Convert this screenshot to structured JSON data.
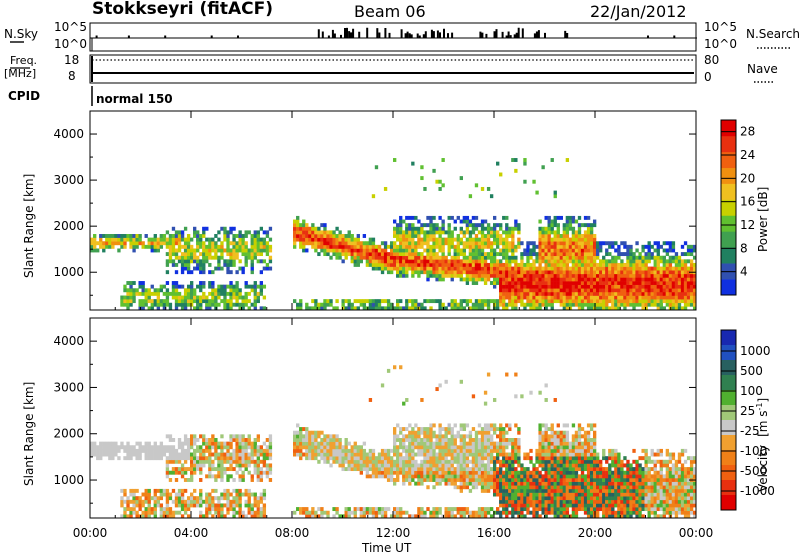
{
  "header": {
    "station": "Stokkseyri (fitACF)",
    "beam": "Beam 06",
    "date": "22/Jan/2012"
  },
  "nsky_panel": {
    "left_label": "N.Sky",
    "left_ticks": [
      "10^5",
      "10^0"
    ],
    "right_label": "N.Search",
    "right_ticks": [
      "10^5",
      "10^0"
    ]
  },
  "freq_panel": {
    "left_label_1": "Freq.",
    "left_label_2": "[MHz]",
    "left_ticks": [
      "18",
      "8"
    ],
    "right_label": "Nave",
    "right_ticks": [
      "80",
      "0"
    ]
  },
  "cpid": {
    "label": "CPID",
    "mode": "normal 150"
  },
  "chart_data": [
    {
      "type": "heatmap",
      "title": "",
      "xlabel": "Time UT",
      "ylabel": "Slant Range [km]",
      "x_ticks": [
        "00:00",
        "04:00",
        "08:00",
        "12:00",
        "16:00",
        "20:00",
        "00:00"
      ],
      "xlim": [
        0,
        24
      ],
      "y_ticks": [
        "1000",
        "2000",
        "3000",
        "4000"
      ],
      "ylim": [
        180,
        4500
      ],
      "colorbar": {
        "label": "Power [dB]",
        "ticks": [
          "4",
          "8",
          "12",
          "16",
          "20",
          "24",
          "28"
        ],
        "range": [
          0,
          30
        ],
        "colors": [
          "#1030e0",
          "#3050b0",
          "#208060",
          "#40a050",
          "#60c030",
          "#c8d000",
          "#f0c020",
          "#f09010",
          "#f06010",
          "#e83010",
          "#e00000"
        ]
      }
    },
    {
      "type": "heatmap",
      "title": "",
      "xlabel": "Time UT",
      "ylabel": "Slant Range [km]",
      "x_ticks": [
        "00:00",
        "04:00",
        "08:00",
        "12:00",
        "16:00",
        "20:00",
        "00:00"
      ],
      "xlim": [
        0,
        24
      ],
      "y_ticks": [
        "1000",
        "2000",
        "3000",
        "4000"
      ],
      "ylim": [
        180,
        4500
      ],
      "colorbar": {
        "label_main": "Velocity",
        "label_unit": "[m s",
        "label_sup": "-1",
        "label_end": "]",
        "ticks": [
          "1000",
          "500",
          "100",
          "25",
          "-25",
          "-100",
          "-500",
          "-1000"
        ],
        "colors": [
          "#1828b0",
          "#2050c0",
          "#286060",
          "#308050",
          "#50b030",
          "#a0c878",
          "#c8c8c8",
          "#f0a030",
          "#f08018",
          "#f06010",
          "#e83010",
          "#e00000"
        ]
      }
    }
  ]
}
